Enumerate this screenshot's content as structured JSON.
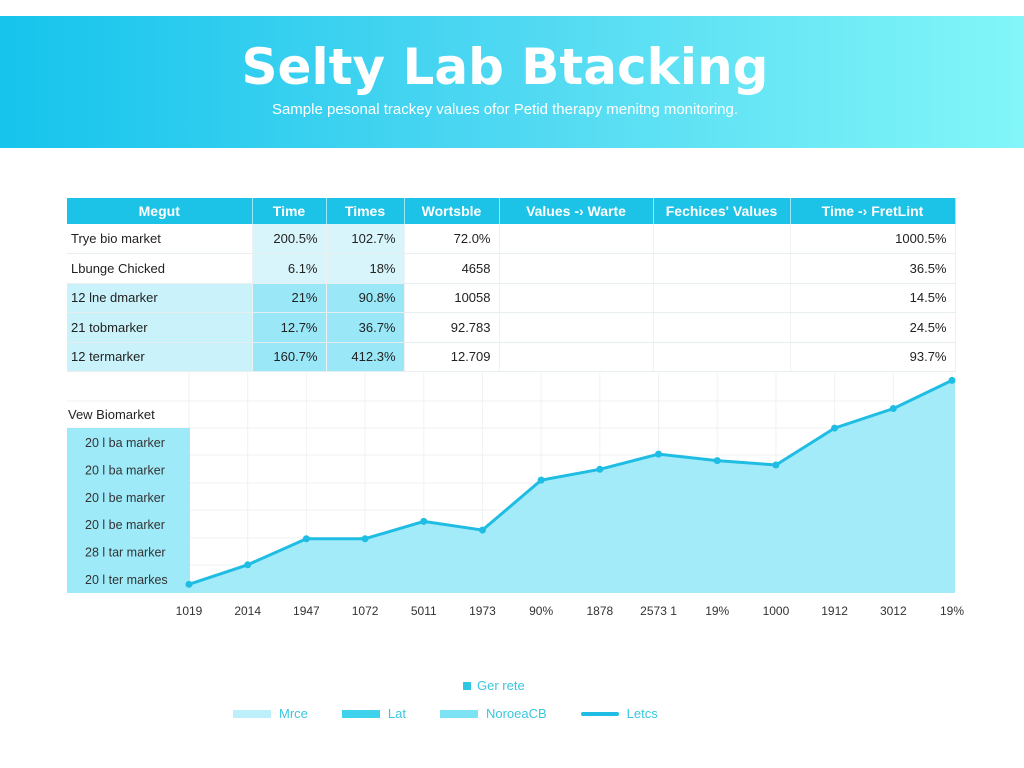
{
  "header": {
    "title": "Selty Lab Btacking",
    "subtitle": "Sample pesonal trackey values ofor Petid therapy menitng monitoring."
  },
  "table": {
    "columns": [
      "Megut",
      "Time",
      "Times",
      "Wortsble",
      "Values -› Warte",
      "Fechices' Values",
      "Time -› FretLint"
    ],
    "rows": [
      [
        "Trye bio market",
        "200.5%",
        "102.7%",
        "72.0%",
        "",
        "",
        "1000.5%"
      ],
      [
        "Lbunge Chicked",
        "6.1%",
        "18%",
        "4658",
        "",
        "",
        "36.5%"
      ],
      [
        "12 lne dmarker",
        "21%",
        "90.8%",
        "10058",
        "",
        "",
        "14.5%"
      ],
      [
        "21 tobmarker",
        "12.7%",
        "36.7%",
        "92.783",
        "",
        "",
        "24.5%"
      ],
      [
        "12 termarker",
        "160.7%",
        "412.3%",
        "12.709",
        "",
        "",
        "93.7%"
      ]
    ]
  },
  "chart_data": {
    "type": "area",
    "title": "Vew Biomarket",
    "row_labels": [
      "20 l ba marker",
      "20 l ba marker",
      "20 l be marker",
      "20 l be marker",
      "28 l tar marker",
      "20 l ter markes"
    ],
    "categories": [
      "1019",
      "2014",
      "1947",
      "1072",
      "5011",
      "1973",
      "90%",
      "1878",
      "2573 1",
      "19%",
      "1000",
      "1912",
      "3012",
      "19%"
    ],
    "values": [
      4,
      13,
      25,
      25,
      33,
      29,
      52,
      57,
      64,
      61,
      59,
      76,
      85,
      98
    ],
    "ylim": [
      0,
      100
    ],
    "grid": true,
    "colors": {
      "line": "#1fbde3",
      "fill": "#9eeaf8"
    }
  },
  "legend": {
    "title": "Ger rete",
    "items": [
      {
        "label": "Mrce",
        "color": "#bdf0fa"
      },
      {
        "label": "Lat",
        "color": "#3fd2ec"
      },
      {
        "label": "NoroeaCB",
        "color": "#7de3f4"
      },
      {
        "label": "Letcs",
        "color": "#1fbde3"
      }
    ]
  }
}
